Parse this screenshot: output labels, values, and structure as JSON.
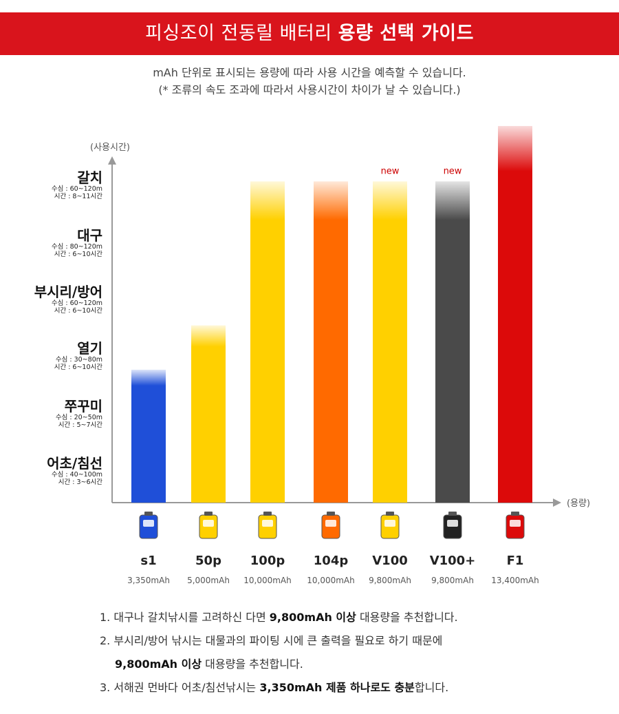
{
  "banner": {
    "title_regular": "피싱조이 전동릴 배터리 ",
    "title_bold": "용량 선택 가이드"
  },
  "subtitle": {
    "line1": "mAh 단위로 표시되는 용량에 따라 사용 시간을 예측할 수 있습니다.",
    "line2": "(* 조류의 속도 조과에 따라서 사용시간이 차이가 날 수 있습니다.)"
  },
  "chart_data": {
    "type": "bar",
    "ylabel": "(사용시간)",
    "xlabel": "(용량)",
    "categories": [
      "s1",
      "50p",
      "100p",
      "104p",
      "V100",
      "V100+",
      "F1"
    ],
    "capacities": [
      "3,350mAh",
      "5,000mAh",
      "10,000mAh",
      "10,000mAh",
      "9,800mAh",
      "9,800mAh",
      "13,400mAh"
    ],
    "values": [
      2.4,
      3.2,
      5.8,
      5.8,
      5.8,
      5.8,
      6.8
    ],
    "ylim": [
      0,
      6.8
    ],
    "colors": [
      "#1f4fd8",
      "#ffd000",
      "#ffd000",
      "#ff6a00",
      "#ffd000",
      "#4a4a4a",
      "#dc0a0a"
    ],
    "badges": [
      "",
      "",
      "",
      "",
      "new",
      "new",
      ""
    ],
    "badge_color": "#cc0000",
    "y_levels": [
      {
        "name": "어초/침선",
        "depth": "수심 : 40~100m",
        "time": "시간 : 3~6시간"
      },
      {
        "name": "쭈꾸미",
        "depth": "수심 : 20~50m",
        "time": "시간 : 5~7시간"
      },
      {
        "name": "열기",
        "depth": "수심 : 30~80m",
        "time": "시간 : 6~10시간"
      },
      {
        "name": "부시리/방어",
        "depth": "수심 : 60~120m",
        "time": "시간 : 6~10시간"
      },
      {
        "name": "대구",
        "depth": "수심 : 80~120m",
        "time": "시간 : 6~10시간"
      },
      {
        "name": "갈치",
        "depth": "수심 : 60~120m",
        "time": "시간 : 8~11시간"
      }
    ],
    "grid": false
  },
  "notes": {
    "n1_a": "1. 대구나 갈치낚시를 고려하신 다면 ",
    "n1_b": "9,800mAh 이상",
    "n1_c": " 대용량을 추천합니다.",
    "n2_a": "2. 부시리/방어 낚시는 대물과의 파이팅 시에 큰 출력을 필요로 하기 때문에",
    "n2_b": "9,800mAh 이상",
    "n2_c": " 대용량을 추천합니다.",
    "n3_a": "3. 서해권 먼바다 어초/침선낚시는 ",
    "n3_b": "3,350mAh 제품 하나로도 충분",
    "n3_c": "합니다."
  }
}
